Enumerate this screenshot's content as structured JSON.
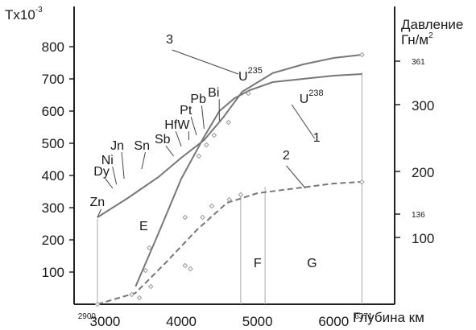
{
  "chart_data": {
    "type": "line",
    "xlabel": "Глубина км",
    "ylabel_left": "Tx10",
    "ylabel_left_sup": "-3",
    "ylabel_right_line1": "Давление",
    "ylabel_right_line2": "Гн/м",
    "ylabel_right_sup": "2",
    "xlim": [
      2700,
      6500
    ],
    "ylim": [
      0,
      860
    ],
    "x_ticks": [
      {
        "value": 3000,
        "label": "3000"
      },
      {
        "value": 4000,
        "label": "4000"
      },
      {
        "value": 5000,
        "label": "5000"
      },
      {
        "value": 6000,
        "label": "6000"
      }
    ],
    "x_special_labels": [
      {
        "value": 2900,
        "label": "2900"
      },
      {
        "value": 6371,
        "label": "6371"
      }
    ],
    "y_ticks": [
      100,
      200,
      300,
      400,
      500,
      600,
      700,
      800
    ],
    "pressure_ticks": [
      {
        "label": "100",
        "major": true,
        "pos": 100
      },
      {
        "label": "136",
        "major": false,
        "pos": 266
      },
      {
        "label": "200",
        "major": true,
        "pos": 200
      },
      {
        "label": "300",
        "major": true,
        "pos": 300
      },
      {
        "label": "361",
        "major": false,
        "pos": 361
      }
    ],
    "series": [
      {
        "name": "3",
        "style": "solid",
        "x": [
          2900,
          3300,
          3700,
          4000,
          4300,
          4550,
          4800,
          5200,
          5600,
          6000,
          6371
        ],
        "y": [
          270,
          330,
          395,
          455,
          510,
          580,
          660,
          718,
          745,
          765,
          775
        ]
      },
      {
        "name": "1",
        "style": "solid",
        "x": [
          3400,
          3700,
          4000,
          4300,
          4500,
          4700,
          4900,
          5200,
          5600,
          6000,
          6371
        ],
        "y": [
          55,
          220,
          390,
          520,
          600,
          640,
          665,
          690,
          700,
          710,
          715
        ]
      },
      {
        "name": "2",
        "style": "dashed",
        "x": [
          2900,
          3400,
          3800,
          4200,
          4600,
          5000,
          5500,
          6000,
          6371
        ],
        "y": [
          0,
          35,
          130,
          230,
          315,
          345,
          360,
          375,
          380
        ]
      }
    ],
    "markers": [
      {
        "x": 2900,
        "y": 0
      },
      {
        "x": 3350,
        "y": 30
      },
      {
        "x": 3450,
        "y": 20
      },
      {
        "x": 3600,
        "y": 55
      },
      {
        "x": 3530,
        "y": 105
      },
      {
        "x": 3580,
        "y": 175
      },
      {
        "x": 4050,
        "y": 270
      },
      {
        "x": 4050,
        "y": 120
      },
      {
        "x": 4120,
        "y": 110
      },
      {
        "x": 4280,
        "y": 270
      },
      {
        "x": 4400,
        "y": 305
      },
      {
        "x": 4630,
        "y": 325
      },
      {
        "x": 4780,
        "y": 340
      },
      {
        "x": 6371,
        "y": 380
      },
      {
        "x": 4230,
        "y": 460
      },
      {
        "x": 4330,
        "y": 495
      },
      {
        "x": 4430,
        "y": 525
      },
      {
        "x": 4620,
        "y": 565
      },
      {
        "x": 4880,
        "y": 655
      },
      {
        "x": 6371,
        "y": 775
      }
    ],
    "boundaries": [
      2900,
      4780,
      5100,
      6371
    ],
    "element_labels": [
      {
        "text": "Zn",
        "x": 2800,
        "y": 305
      },
      {
        "text": "Dy",
        "x": 2850,
        "y": 400
      },
      {
        "text": "Ni",
        "x": 2950,
        "y": 435
      },
      {
        "text": "Jn",
        "x": 3070,
        "y": 480
      },
      {
        "text": "Sn",
        "x": 3380,
        "y": 480
      },
      {
        "text": "Sb",
        "x": 3650,
        "y": 500
      },
      {
        "text": "Hf",
        "x": 3780,
        "y": 545
      },
      {
        "text": "W",
        "x": 3950,
        "y": 545
      },
      {
        "text": "Pt",
        "x": 3980,
        "y": 590
      },
      {
        "text": "Pb",
        "x": 4120,
        "y": 625
      },
      {
        "text": "Bi",
        "x": 4350,
        "y": 645
      }
    ],
    "curve_labels": [
      {
        "text": "3",
        "x": 3800,
        "y": 810
      },
      {
        "text": "1",
        "x": 5730,
        "y": 505
      },
      {
        "text": "2",
        "x": 5330,
        "y": 450
      }
    ],
    "isotope_labels": [
      {
        "text": "U",
        "sup": "235",
        "x": 4750,
        "y": 695
      },
      {
        "text": "U",
        "sup": "238",
        "x": 5550,
        "y": 625
      }
    ],
    "region_labels": [
      {
        "text": "E",
        "x": 3450,
        "y": 230
      },
      {
        "text": "F",
        "x": 4950,
        "y": 115
      },
      {
        "text": "G",
        "x": 5650,
        "y": 115
      }
    ]
  }
}
